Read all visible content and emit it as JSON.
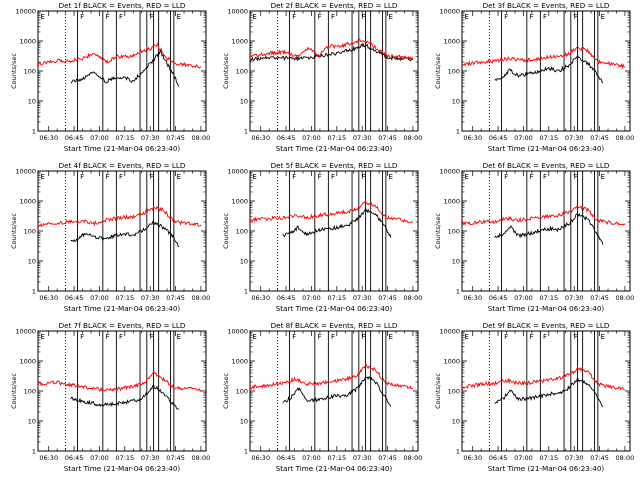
{
  "colors": {
    "background": "#ffffff",
    "axes": "#000000",
    "events": "#000000",
    "lld": "#ff0000"
  },
  "chart_data": [
    {
      "type": "line",
      "title": "Det 1f BLACK = Events, RED = LLD",
      "xlabel": "Start Time (21-Mar-04 06:23:40)",
      "ylabel": "Counts/sec",
      "yscale": "log",
      "ylim": [
        1,
        10000
      ],
      "xlim": [
        "06:23:40",
        "08:03:00"
      ],
      "xticks": [
        "06:30",
        "06:45",
        "07:00",
        "07:15",
        "07:30",
        "07:45",
        "08:00"
      ],
      "yticks": [
        "1",
        "10",
        "100",
        "1000",
        "10000"
      ],
      "grid": false,
      "legend": "none",
      "series": [
        {
          "name": "BLACK = Events",
          "color": "#000000",
          "x": [
            "06:43",
            "06:50",
            "06:57",
            "07:04",
            "07:08",
            "07:14",
            "07:20",
            "07:27",
            "07:31",
            "07:36",
            "07:40",
            "07:44",
            "07:47"
          ],
          "values": [
            42,
            55,
            95,
            45,
            55,
            65,
            45,
            120,
            200,
            450,
            180,
            75,
            30
          ]
        },
        {
          "name": "RED = LLD",
          "color": "#ff0000",
          "x": [
            "06:23",
            "06:35",
            "06:43",
            "06:50",
            "06:57",
            "07:04",
            "07:10",
            "07:17",
            "07:24",
            "07:30",
            "07:34",
            "07:39",
            "07:44",
            "08:00"
          ],
          "values": [
            170,
            220,
            220,
            270,
            380,
            200,
            300,
            300,
            420,
            550,
            800,
            300,
            180,
            140
          ]
        }
      ]
    },
    {
      "type": "line",
      "title": "Det 2f BLACK = Events, RED = LLD",
      "xlabel": "Start Time (21-Mar-04 06:23:40)",
      "ylabel": "Counts/sec",
      "yscale": "log",
      "ylim": [
        1,
        10000
      ],
      "xlim": [
        "06:23:40",
        "08:03:00"
      ],
      "xticks": [
        "06:30",
        "06:45",
        "07:00",
        "07:15",
        "07:30",
        "07:45",
        "08:00"
      ],
      "yticks": [
        "1",
        "10",
        "100",
        "1000",
        "10000"
      ],
      "grid": false,
      "legend": "none",
      "series": [
        {
          "name": "BLACK = Events",
          "color": "#000000",
          "x": [
            "06:23",
            "06:35",
            "06:45",
            "06:55",
            "07:05",
            "07:15",
            "07:25",
            "07:30",
            "07:35",
            "07:45",
            "08:00"
          ],
          "values": [
            240,
            280,
            270,
            260,
            320,
            380,
            550,
            750,
            600,
            280,
            240
          ]
        },
        {
          "name": "RED = LLD",
          "color": "#ff0000",
          "x": [
            "06:23",
            "06:35",
            "06:45",
            "06:52",
            "06:58",
            "07:04",
            "07:10",
            "07:18",
            "07:24",
            "07:30",
            "07:35",
            "07:45",
            "08:00"
          ],
          "values": [
            300,
            400,
            420,
            300,
            600,
            320,
            650,
            700,
            850,
            1100,
            800,
            320,
            260
          ]
        }
      ]
    },
    {
      "type": "line",
      "title": "Det 3f BLACK = Events, RED = LLD",
      "xlabel": "Start Time (21-Mar-04 06:23:40)",
      "ylabel": "Counts/sec",
      "yscale": "log",
      "ylim": [
        1,
        10000
      ],
      "xlim": [
        "06:23:40",
        "08:03:00"
      ],
      "xticks": [
        "06:30",
        "06:45",
        "07:00",
        "07:15",
        "07:30",
        "07:45",
        "08:00"
      ],
      "yticks": [
        "1",
        "10",
        "100",
        "1000",
        "10000"
      ],
      "grid": false,
      "legend": "none",
      "series": [
        {
          "name": "BLACK = Events",
          "color": "#000000",
          "x": [
            "06:43",
            "06:48",
            "06:52",
            "06:57",
            "07:03",
            "07:09",
            "07:15",
            "07:21",
            "07:27",
            "07:32",
            "07:38",
            "07:43",
            "07:47"
          ],
          "values": [
            50,
            60,
            110,
            70,
            80,
            100,
            120,
            100,
            160,
            300,
            180,
            90,
            40
          ]
        },
        {
          "name": "RED = LLD",
          "color": "#ff0000",
          "x": [
            "06:23",
            "06:35",
            "06:43",
            "06:50",
            "06:57",
            "07:04",
            "07:12",
            "07:20",
            "07:27",
            "07:32",
            "07:38",
            "07:44",
            "08:00"
          ],
          "values": [
            160,
            200,
            210,
            260,
            240,
            230,
            280,
            300,
            380,
            600,
            480,
            200,
            140
          ]
        }
      ]
    },
    {
      "type": "line",
      "title": "Det 4f BLACK = Events, RED = LLD",
      "xlabel": "Start Time (21-Mar-04 06:23:40)",
      "ylabel": "Counts/sec",
      "yscale": "log",
      "ylim": [
        1,
        10000
      ],
      "xlim": [
        "06:23:40",
        "08:03:00"
      ],
      "xticks": [
        "06:30",
        "06:45",
        "07:00",
        "07:15",
        "07:30",
        "07:45",
        "08:00"
      ],
      "yticks": [
        "1",
        "10",
        "100",
        "1000",
        "10000"
      ],
      "grid": false,
      "legend": "none",
      "series": [
        {
          "name": "BLACK = Events",
          "color": "#000000",
          "x": [
            "06:43",
            "06:48",
            "06:52",
            "06:57",
            "07:03",
            "07:09",
            "07:15",
            "07:21",
            "07:27",
            "07:32",
            "07:38",
            "07:43",
            "07:47"
          ],
          "values": [
            45,
            55,
            90,
            60,
            55,
            70,
            80,
            75,
            120,
            200,
            130,
            70,
            30
          ]
        },
        {
          "name": "RED = LLD",
          "color": "#ff0000",
          "x": [
            "06:23",
            "06:35",
            "06:43",
            "06:50",
            "06:57",
            "07:04",
            "07:12",
            "07:20",
            "07:27",
            "07:32",
            "07:38",
            "07:44",
            "08:00"
          ],
          "values": [
            150,
            190,
            200,
            220,
            180,
            230,
            280,
            300,
            420,
            600,
            500,
            200,
            160
          ]
        }
      ]
    },
    {
      "type": "line",
      "title": "Det 5f BLACK = Events, RED = LLD",
      "xlabel": "Start Time (21-Mar-04 06:23:40)",
      "ylabel": "Counts/sec",
      "yscale": "log",
      "ylim": [
        1,
        10000
      ],
      "xlim": [
        "06:23:40",
        "08:03:00"
      ],
      "xticks": [
        "06:30",
        "06:45",
        "07:00",
        "07:15",
        "07:30",
        "07:45",
        "08:00"
      ],
      "yticks": [
        "1",
        "10",
        "100",
        "1000",
        "10000"
      ],
      "grid": false,
      "legend": "none",
      "series": [
        {
          "name": "BLACK = Events",
          "color": "#000000",
          "x": [
            "06:43",
            "06:48",
            "06:52",
            "06:57",
            "07:03",
            "07:09",
            "07:15",
            "07:21",
            "07:27",
            "07:32",
            "07:38",
            "07:43",
            "07:47"
          ],
          "values": [
            70,
            90,
            130,
            80,
            100,
            120,
            130,
            150,
            250,
            500,
            350,
            150,
            60
          ]
        },
        {
          "name": "RED = LLD",
          "color": "#ff0000",
          "x": [
            "06:23",
            "06:35",
            "06:43",
            "06:50",
            "06:57",
            "07:04",
            "07:12",
            "07:20",
            "07:27",
            "07:32",
            "07:38",
            "07:44",
            "08:00"
          ],
          "values": [
            230,
            260,
            270,
            320,
            280,
            330,
            380,
            420,
            550,
            900,
            650,
            280,
            200
          ]
        }
      ]
    },
    {
      "type": "line",
      "title": "Det 6f BLACK = Events, RED = LLD",
      "xlabel": "Start Time (21-Mar-04 06:23:40)",
      "ylabel": "Counts/sec",
      "yscale": "log",
      "ylim": [
        1,
        10000
      ],
      "xlim": [
        "06:23:40",
        "08:03:00"
      ],
      "xticks": [
        "06:30",
        "06:45",
        "07:00",
        "07:15",
        "07:30",
        "07:45",
        "08:00"
      ],
      "yticks": [
        "1",
        "10",
        "100",
        "1000",
        "10000"
      ],
      "grid": false,
      "legend": "none",
      "series": [
        {
          "name": "BLACK = Events",
          "color": "#000000",
          "x": [
            "06:43",
            "06:48",
            "06:52",
            "06:57",
            "07:03",
            "07:09",
            "07:15",
            "07:21",
            "07:27",
            "07:32",
            "07:38",
            "07:43",
            "07:47"
          ],
          "values": [
            60,
            80,
            140,
            70,
            80,
            100,
            120,
            110,
            180,
            350,
            250,
            90,
            35
          ]
        },
        {
          "name": "RED = LLD",
          "color": "#ff0000",
          "x": [
            "06:23",
            "06:35",
            "06:43",
            "06:50",
            "06:57",
            "07:04",
            "07:12",
            "07:20",
            "07:27",
            "07:32",
            "07:38",
            "07:44",
            "08:00"
          ],
          "values": [
            170,
            200,
            210,
            260,
            230,
            260,
            300,
            330,
            420,
            650,
            500,
            220,
            160
          ]
        }
      ]
    },
    {
      "type": "line",
      "title": "Det 7f BLACK = Events, RED = LLD",
      "xlabel": "Start Time (21-Mar-04 06:23:40)",
      "ylabel": "Counts/sec",
      "yscale": "log",
      "ylim": [
        1,
        10000
      ],
      "xlim": [
        "06:23:40",
        "08:03:00"
      ],
      "xticks": [
        "06:30",
        "06:45",
        "07:00",
        "07:15",
        "07:30",
        "07:45",
        "08:00"
      ],
      "yticks": [
        "1",
        "10",
        "100",
        "1000",
        "10000"
      ],
      "grid": false,
      "legend": "none",
      "series": [
        {
          "name": "BLACK = Events",
          "color": "#000000",
          "x": [
            "06:43",
            "06:48",
            "06:55",
            "07:00",
            "07:06",
            "07:12",
            "07:18",
            "07:24",
            "07:28",
            "07:32",
            "07:36",
            "07:42",
            "07:47"
          ],
          "values": [
            55,
            50,
            40,
            35,
            35,
            40,
            45,
            50,
            80,
            150,
            100,
            45,
            25
          ]
        },
        {
          "name": "RED = LLD",
          "color": "#ff0000",
          "x": [
            "06:23",
            "06:35",
            "06:43",
            "06:50",
            "06:57",
            "07:04",
            "07:12",
            "07:20",
            "07:27",
            "07:32",
            "07:36",
            "07:44",
            "08:00"
          ],
          "values": [
            170,
            190,
            160,
            140,
            120,
            110,
            120,
            140,
            200,
            400,
            300,
            130,
            110
          ]
        }
      ]
    },
    {
      "type": "line",
      "title": "Det 8f BLACK = Events, RED = LLD",
      "xlabel": "Start Time (21-Mar-04 06:23:40)",
      "ylabel": "Counts/sec",
      "yscale": "log",
      "ylim": [
        1,
        10000
      ],
      "xlim": [
        "06:23:40",
        "08:03:00"
      ],
      "xticks": [
        "06:30",
        "06:45",
        "07:00",
        "07:15",
        "07:30",
        "07:45",
        "08:00"
      ],
      "yticks": [
        "1",
        "10",
        "100",
        "1000",
        "10000"
      ],
      "grid": false,
      "legend": "none",
      "series": [
        {
          "name": "BLACK = Events",
          "color": "#000000",
          "x": [
            "06:43",
            "06:48",
            "06:52",
            "06:57",
            "07:03",
            "07:09",
            "07:15",
            "07:21",
            "07:27",
            "07:32",
            "07:38",
            "07:43",
            "07:47"
          ],
          "values": [
            40,
            60,
            130,
            50,
            50,
            60,
            70,
            70,
            120,
            300,
            200,
            70,
            30
          ]
        },
        {
          "name": "RED = LLD",
          "color": "#ff0000",
          "x": [
            "06:23",
            "06:35",
            "06:43",
            "06:50",
            "06:57",
            "07:04",
            "07:12",
            "07:20",
            "07:27",
            "07:32",
            "07:38",
            "07:44",
            "08:00"
          ],
          "values": [
            130,
            160,
            180,
            250,
            170,
            180,
            200,
            240,
            320,
            700,
            500,
            180,
            120
          ]
        }
      ]
    },
    {
      "type": "line",
      "title": "Det 9f BLACK = Events, RED = LLD",
      "xlabel": "Start Time (21-Mar-04 06:23:40)",
      "ylabel": "Counts/sec",
      "yscale": "log",
      "ylim": [
        1,
        10000
      ],
      "xlim": [
        "06:23:40",
        "08:03:00"
      ],
      "xticks": [
        "06:30",
        "06:45",
        "07:00",
        "07:15",
        "07:30",
        "07:45",
        "08:00"
      ],
      "yticks": [
        "1",
        "10",
        "100",
        "1000",
        "10000"
      ],
      "grid": false,
      "legend": "none",
      "series": [
        {
          "name": "BLACK = Events",
          "color": "#000000",
          "x": [
            "06:43",
            "06:48",
            "06:52",
            "06:57",
            "07:03",
            "07:09",
            "07:15",
            "07:21",
            "07:27",
            "07:32",
            "07:38",
            "07:43",
            "07:47"
          ],
          "values": [
            40,
            55,
            110,
            55,
            55,
            65,
            80,
            80,
            130,
            250,
            180,
            70,
            30
          ]
        },
        {
          "name": "RED = LLD",
          "color": "#ff0000",
          "x": [
            "06:23",
            "06:35",
            "06:43",
            "06:50",
            "06:57",
            "07:04",
            "07:12",
            "07:20",
            "07:27",
            "07:32",
            "07:38",
            "07:44",
            "08:00"
          ],
          "values": [
            130,
            170,
            180,
            230,
            180,
            190,
            220,
            260,
            340,
            550,
            450,
            170,
            110
          ]
        }
      ]
    }
  ]
}
